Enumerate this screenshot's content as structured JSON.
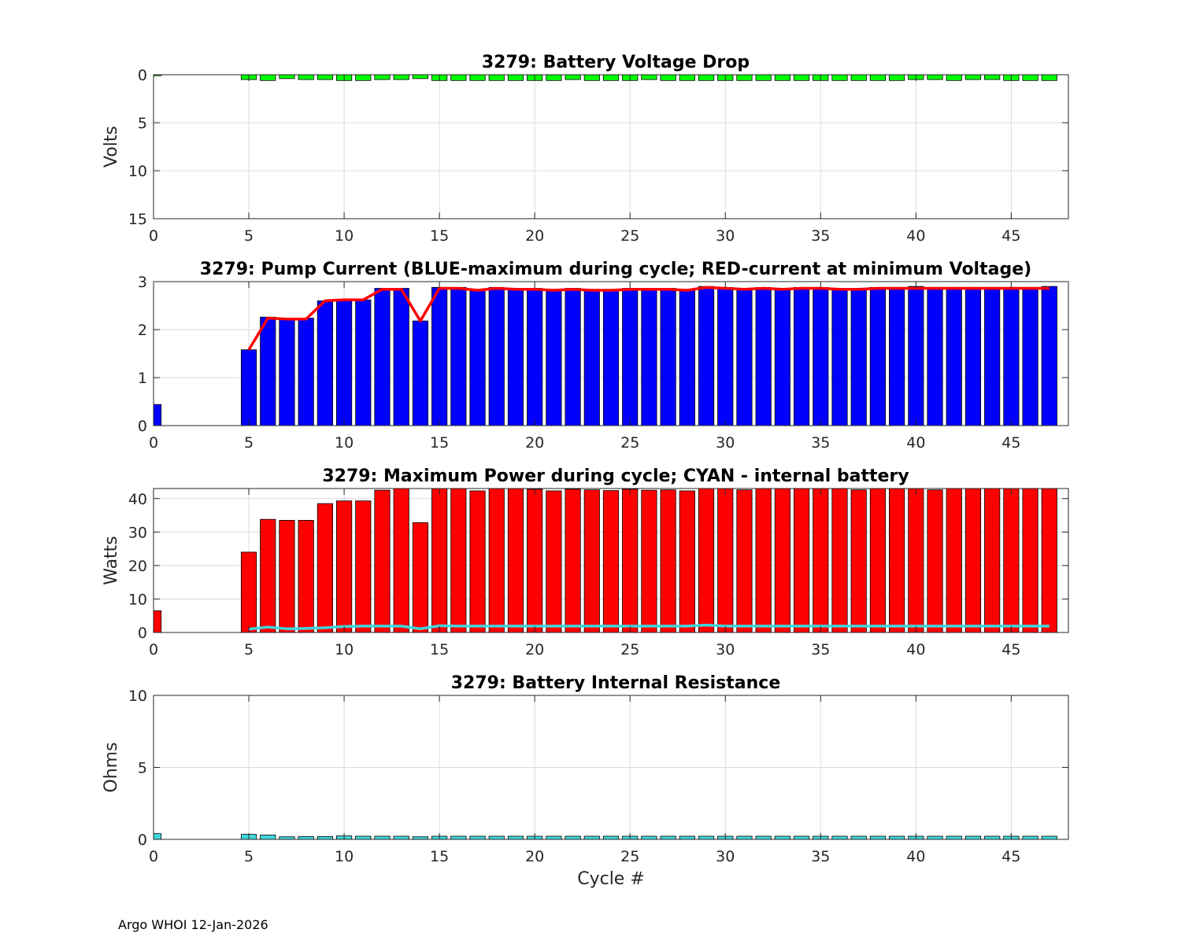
{
  "chart_data": [
    {
      "type": "bar",
      "id": "voltage",
      "title": "3279: Battery Voltage Drop",
      "xlabel": "",
      "ylabel": "Volts",
      "xlim": [
        0,
        48
      ],
      "ylim": [
        0,
        15
      ],
      "y_reversed": true,
      "xticks": [
        0,
        5,
        10,
        15,
        20,
        25,
        30,
        35,
        40,
        45
      ],
      "yticks": [
        0,
        5,
        10,
        15
      ],
      "grid": true,
      "bar_color": "#00ff00",
      "bars": {
        "name": "Voltage drop",
        "x": [
          0,
          5,
          6,
          7,
          8,
          9,
          10,
          11,
          12,
          13,
          14,
          15,
          16,
          17,
          18,
          19,
          20,
          21,
          22,
          23,
          24,
          25,
          26,
          27,
          28,
          29,
          30,
          31,
          32,
          33,
          34,
          35,
          36,
          37,
          38,
          39,
          40,
          41,
          42,
          43,
          44,
          45,
          46,
          47
        ],
        "values": [
          0.1,
          0.5,
          0.6,
          0.4,
          0.5,
          0.5,
          0.6,
          0.6,
          0.5,
          0.5,
          0.4,
          0.6,
          0.6,
          0.6,
          0.6,
          0.6,
          0.6,
          0.6,
          0.5,
          0.6,
          0.6,
          0.6,
          0.5,
          0.6,
          0.6,
          0.6,
          0.6,
          0.6,
          0.6,
          0.6,
          0.6,
          0.6,
          0.6,
          0.6,
          0.6,
          0.6,
          0.5,
          0.5,
          0.6,
          0.5,
          0.5,
          0.6,
          0.6,
          0.6
        ]
      }
    },
    {
      "type": "bar",
      "id": "pump",
      "title": "3279: Pump Current (BLUE-maximum during cycle; RED-current at minimum Voltage)",
      "xlabel": "",
      "ylabel": "",
      "xlim": [
        0,
        48
      ],
      "ylim": [
        0,
        3
      ],
      "xticks": [
        0,
        5,
        10,
        15,
        20,
        25,
        30,
        35,
        40,
        45
      ],
      "yticks": [
        0,
        1,
        2,
        3
      ],
      "grid": true,
      "bar_color": "#0000ff",
      "line_color": "#ff0000",
      "bars": {
        "name": "maximum during cycle",
        "x": [
          0,
          5,
          6,
          7,
          8,
          9,
          10,
          11,
          12,
          13,
          14,
          15,
          16,
          17,
          18,
          19,
          20,
          21,
          22,
          23,
          24,
          25,
          26,
          27,
          28,
          29,
          30,
          31,
          32,
          33,
          34,
          35,
          36,
          37,
          38,
          39,
          40,
          41,
          42,
          43,
          44,
          45,
          46,
          47
        ],
        "values": [
          0.44,
          1.58,
          2.26,
          2.24,
          2.24,
          2.6,
          2.62,
          2.62,
          2.86,
          2.86,
          2.18,
          2.88,
          2.88,
          2.84,
          2.88,
          2.86,
          2.86,
          2.84,
          2.86,
          2.84,
          2.84,
          2.86,
          2.86,
          2.86,
          2.84,
          2.9,
          2.88,
          2.86,
          2.88,
          2.86,
          2.88,
          2.88,
          2.86,
          2.86,
          2.88,
          2.88,
          2.9,
          2.88,
          2.88,
          2.88,
          2.88,
          2.88,
          2.88,
          2.9
        ]
      },
      "line": {
        "name": "current at minimum Voltage",
        "x": [
          5,
          6,
          7,
          8,
          9,
          10,
          11,
          12,
          13,
          14,
          15,
          16,
          17,
          18,
          19,
          20,
          21,
          22,
          23,
          24,
          25,
          26,
          27,
          28,
          29,
          30,
          31,
          32,
          33,
          34,
          35,
          36,
          37,
          38,
          39,
          40,
          41,
          42,
          43,
          44,
          45,
          46,
          47
        ],
        "values": [
          1.58,
          2.24,
          2.22,
          2.22,
          2.6,
          2.62,
          2.62,
          2.84,
          2.84,
          2.18,
          2.86,
          2.86,
          2.82,
          2.86,
          2.84,
          2.84,
          2.82,
          2.84,
          2.82,
          2.82,
          2.84,
          2.84,
          2.84,
          2.82,
          2.88,
          2.86,
          2.84,
          2.86,
          2.84,
          2.86,
          2.86,
          2.84,
          2.84,
          2.86,
          2.86,
          2.86,
          2.86,
          2.86,
          2.86,
          2.86,
          2.86,
          2.86,
          2.86
        ]
      }
    },
    {
      "type": "bar",
      "id": "power",
      "title": "3279: Maximum Power during cycle; CYAN - internal battery",
      "xlabel": "",
      "ylabel": "Watts",
      "xlim": [
        0,
        48
      ],
      "ylim": [
        0,
        43
      ],
      "xticks": [
        0,
        5,
        10,
        15,
        20,
        25,
        30,
        35,
        40,
        45
      ],
      "yticks": [
        0,
        10,
        20,
        30,
        40
      ],
      "grid": true,
      "bar_color": "#ff0000",
      "line_color": "#3fd6dc",
      "bars": {
        "name": "Maximum Power",
        "x": [
          0,
          5,
          6,
          7,
          8,
          9,
          10,
          11,
          12,
          13,
          14,
          15,
          16,
          17,
          18,
          19,
          20,
          21,
          22,
          23,
          24,
          25,
          26,
          27,
          28,
          29,
          30,
          31,
          32,
          33,
          34,
          35,
          36,
          37,
          38,
          39,
          40,
          41,
          42,
          43,
          44,
          45,
          46,
          47
        ],
        "values": [
          6.5,
          24,
          33.8,
          33.5,
          33.5,
          38.5,
          39.3,
          39.3,
          42.5,
          43,
          32.8,
          43,
          43,
          42.3,
          43,
          43,
          42.8,
          42.3,
          42.8,
          42.6,
          42.4,
          42.8,
          42.5,
          42.6,
          42.3,
          43,
          43,
          42.6,
          43,
          43,
          43,
          43,
          43,
          42.6,
          43,
          43,
          43,
          42.6,
          43,
          43,
          43,
          43,
          43,
          43
        ]
      },
      "line": {
        "name": "internal battery",
        "x": [
          5,
          6,
          7,
          8,
          9,
          10,
          11,
          12,
          13,
          14,
          15,
          16,
          17,
          18,
          19,
          20,
          21,
          22,
          23,
          24,
          25,
          26,
          27,
          28,
          29,
          30,
          31,
          32,
          33,
          34,
          35,
          36,
          37,
          38,
          39,
          40,
          41,
          42,
          43,
          44,
          45,
          46,
          47
        ],
        "values": [
          1.0,
          1.6,
          1.1,
          1.2,
          1.4,
          1.8,
          1.9,
          1.9,
          1.9,
          1.1,
          2.0,
          1.9,
          1.9,
          1.9,
          1.9,
          1.9,
          1.9,
          1.9,
          1.9,
          1.9,
          1.9,
          1.9,
          1.9,
          1.9,
          2.2,
          1.9,
          1.9,
          1.9,
          1.9,
          1.9,
          1.9,
          1.9,
          1.9,
          1.9,
          1.9,
          1.9,
          1.9,
          1.9,
          1.9,
          1.9,
          1.9,
          1.9,
          1.9
        ]
      }
    },
    {
      "type": "bar",
      "id": "resistance",
      "title": "3279: Battery Internal Resistance",
      "xlabel": "Cycle #",
      "ylabel": "Ohms",
      "xlim": [
        0,
        48
      ],
      "ylim": [
        0,
        10
      ],
      "xticks": [
        0,
        5,
        10,
        15,
        20,
        25,
        30,
        35,
        40,
        45
      ],
      "yticks": [
        0,
        5,
        10
      ],
      "grid": true,
      "bar_color": "#3fd6dc",
      "bars": {
        "name": "Internal Resistance",
        "x": [
          0,
          5,
          6,
          7,
          8,
          9,
          10,
          11,
          12,
          13,
          14,
          15,
          16,
          17,
          18,
          19,
          20,
          21,
          22,
          23,
          24,
          25,
          26,
          27,
          28,
          29,
          30,
          31,
          32,
          33,
          34,
          35,
          36,
          37,
          38,
          39,
          40,
          41,
          42,
          43,
          44,
          45,
          46,
          47
        ],
        "values": [
          0.4,
          0.35,
          0.3,
          0.18,
          0.2,
          0.2,
          0.24,
          0.22,
          0.22,
          0.22,
          0.18,
          0.22,
          0.22,
          0.22,
          0.22,
          0.22,
          0.22,
          0.22,
          0.22,
          0.22,
          0.22,
          0.22,
          0.22,
          0.22,
          0.22,
          0.22,
          0.22,
          0.22,
          0.22,
          0.22,
          0.22,
          0.22,
          0.22,
          0.22,
          0.22,
          0.22,
          0.22,
          0.22,
          0.22,
          0.22,
          0.22,
          0.22,
          0.22,
          0.22
        ]
      }
    }
  ],
  "footer": "Argo WHOI 12-Jan-2026"
}
